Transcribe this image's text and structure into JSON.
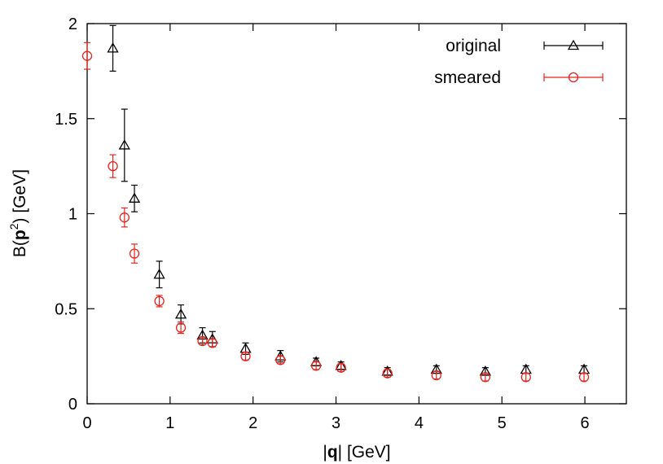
{
  "chart_data": {
    "type": "scatter",
    "title": "",
    "xlabel": "|q| [GeV]",
    "ylabel": "B(p2) [GeV]",
    "xlim": [
      0,
      6.5
    ],
    "ylim": [
      0,
      2
    ],
    "x_ticks": [
      "0",
      "1",
      "2",
      "3",
      "4",
      "5",
      "6"
    ],
    "y_ticks": [
      "0",
      "0.5",
      "1",
      "1.5",
      "2"
    ],
    "grid": false,
    "legend_position": "top-right",
    "series": [
      {
        "name": "original",
        "marker": "triangle",
        "color": "#000000",
        "x": [
          0.31,
          0.45,
          0.57,
          0.87,
          1.13,
          1.39,
          1.51,
          1.91,
          2.33,
          2.76,
          3.06,
          3.62,
          4.21,
          4.8,
          5.29,
          5.99
        ],
        "y": [
          1.87,
          1.36,
          1.08,
          0.68,
          0.47,
          0.36,
          0.34,
          0.29,
          0.25,
          0.22,
          0.2,
          0.17,
          0.18,
          0.17,
          0.18,
          0.18
        ],
        "yerr": [
          0.12,
          0.19,
          0.07,
          0.07,
          0.05,
          0.04,
          0.04,
          0.03,
          0.03,
          0.02,
          0.02,
          0.02,
          0.02,
          0.02,
          0.02,
          0.02
        ]
      },
      {
        "name": "smeared",
        "marker": "circle",
        "color": "#e8231c",
        "x": [
          0.0,
          0.31,
          0.45,
          0.57,
          0.87,
          1.13,
          1.39,
          1.51,
          1.91,
          2.33,
          2.76,
          3.06,
          3.62,
          4.21,
          4.8,
          5.29,
          5.99
        ],
        "y": [
          1.83,
          1.25,
          0.98,
          0.79,
          0.54,
          0.4,
          0.33,
          0.32,
          0.25,
          0.23,
          0.2,
          0.19,
          0.16,
          0.15,
          0.14,
          0.14,
          0.14
        ],
        "yerr": [
          0.07,
          0.06,
          0.05,
          0.05,
          0.03,
          0.03,
          0.02,
          0.02,
          0.02,
          0.02,
          0.02,
          0.02,
          0.02,
          0.02,
          0.02,
          0.02,
          0.02
        ]
      }
    ]
  }
}
